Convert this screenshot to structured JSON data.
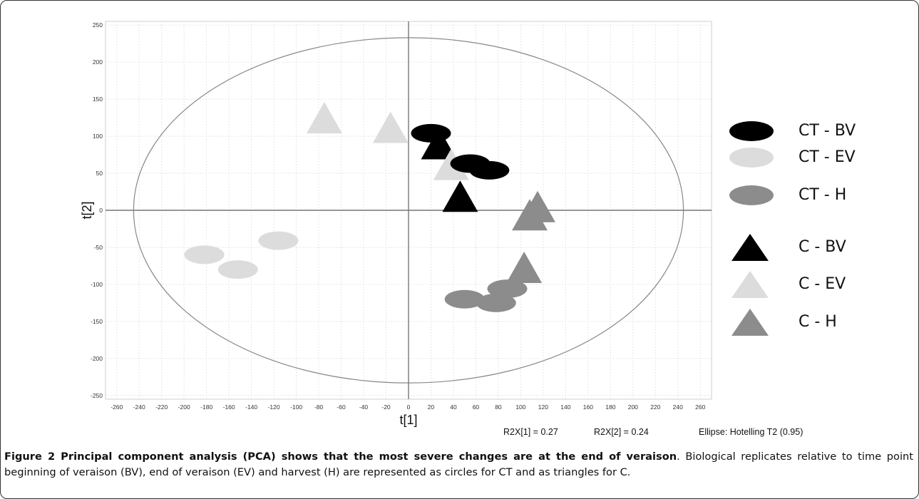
{
  "chart_data": {
    "type": "scatter",
    "xlabel": "t[1]",
    "ylabel": "t[2]",
    "xlim": [
      -270,
      270
    ],
    "ylim": [
      -255,
      255
    ],
    "xticks": [
      -260,
      -240,
      -220,
      -200,
      -180,
      -160,
      -140,
      -120,
      -100,
      -80,
      -60,
      -40,
      -20,
      0,
      20,
      40,
      60,
      80,
      100,
      120,
      140,
      160,
      180,
      200,
      220,
      240,
      260
    ],
    "yticks": [
      -250,
      -200,
      -150,
      -100,
      -50,
      0,
      50,
      100,
      150,
      200,
      250
    ],
    "grid": true,
    "ellipse": {
      "label": "Ellipse: Hotelling T2 (0.95)",
      "rx": 245,
      "ry": 233
    },
    "legend_position": "right",
    "series": [
      {
        "name": "CT - BV",
        "marker": "circle",
        "color": "#000000",
        "points": [
          [
            20,
            104
          ],
          [
            55,
            63
          ],
          [
            72,
            54
          ]
        ]
      },
      {
        "name": "CT - EV",
        "marker": "circle",
        "color": "#dcdcdc",
        "points": [
          [
            -116,
            -41
          ],
          [
            -152,
            -80
          ],
          [
            -182,
            -60
          ]
        ]
      },
      {
        "name": "CT - H",
        "marker": "circle",
        "color": "#8c8c8c",
        "points": [
          [
            50,
            -120
          ],
          [
            78,
            -125
          ],
          [
            88,
            -106
          ]
        ]
      },
      {
        "name": "C - BV",
        "marker": "triangle",
        "color": "#000000",
        "points": [
          [
            27,
            90
          ],
          [
            46,
            19
          ]
        ]
      },
      {
        "name": "C - EV",
        "marker": "triangle",
        "color": "#dcdcdc",
        "points": [
          [
            -75,
            125
          ],
          [
            -16,
            112
          ],
          [
            38,
            62
          ]
        ]
      },
      {
        "name": "C - H",
        "marker": "triangle",
        "color": "#8c8c8c",
        "points": [
          [
            115,
            5
          ],
          [
            108,
            -6
          ],
          [
            103,
            -77
          ]
        ]
      }
    ]
  },
  "stats": {
    "r2x1": "R2X[1] = 0.27",
    "r2x2": "R2X[2] = 0.24",
    "ellipse_label": "Ellipse: Hotelling  T2 (0.95)"
  },
  "caption": {
    "title": "Figure 2 Principal component analysis (PCA) shows that the most severe changes are at the end of veraison",
    "text": ". Biological replicates relative to time point beginning of veraison (BV), end of veraison (EV) and harvest (H) are represented as circles for CT and as triangles for C."
  }
}
